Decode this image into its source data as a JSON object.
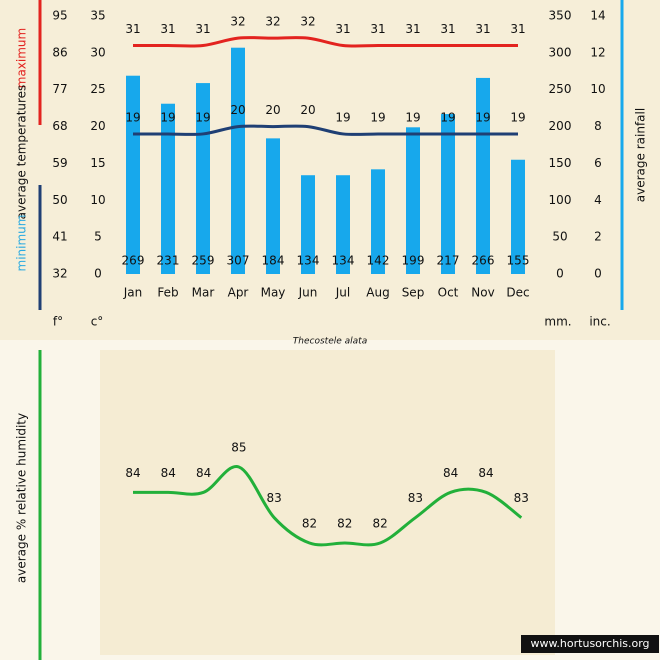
{
  "chart_data": [
    {
      "type": "climate",
      "title": "Thecostele alata",
      "categories": [
        "Jan",
        "Feb",
        "Mar",
        "Apr",
        "May",
        "Jun",
        "Jul",
        "Aug",
        "Sep",
        "Oct",
        "Nov",
        "Dec"
      ],
      "ylabel": "average temperatures",
      "ylim": [
        0,
        35
      ],
      "yticks": [
        0,
        5,
        10,
        15,
        20,
        25,
        30,
        35
      ],
      "yunit": "c°",
      "yflim": [
        32,
        95
      ],
      "yfticks": [
        32,
        41,
        50,
        59,
        68,
        77,
        86,
        95
      ],
      "yfunit": "f°",
      "y2lim": [
        0,
        350
      ],
      "y2ticks": [
        0,
        50,
        100,
        150,
        200,
        250,
        300,
        350
      ],
      "y2unit": "mm.",
      "y3lim": [
        0,
        14
      ],
      "y3ticks": [
        0,
        2,
        4,
        6,
        8,
        10,
        12,
        14
      ],
      "y3unit": "inc.",
      "series": [
        {
          "name": "maximum",
          "type": "line",
          "color": "#e3231f",
          "values": [
            31,
            31,
            31,
            32,
            32,
            32,
            31,
            31,
            31,
            31,
            31,
            31
          ]
        },
        {
          "name": "minimum",
          "type": "line",
          "color": "#1f3f74",
          "values": [
            19,
            19,
            19,
            20,
            20,
            20,
            19,
            19,
            19,
            19,
            19,
            19
          ]
        },
        {
          "name": "average rainfall",
          "type": "bar",
          "axis": "y2",
          "color": "#17a8ec",
          "values": [
            269,
            231,
            259,
            307,
            184,
            134,
            134,
            142,
            199,
            217,
            266,
            155
          ]
        }
      ]
    },
    {
      "type": "line",
      "ylabel": "average % relative humidity",
      "color": "#22b03a",
      "values": [
        84,
        84,
        84,
        85,
        83,
        82,
        82,
        82,
        83,
        84,
        84,
        83
      ]
    }
  ],
  "credit": "www.hortusorchis.org"
}
